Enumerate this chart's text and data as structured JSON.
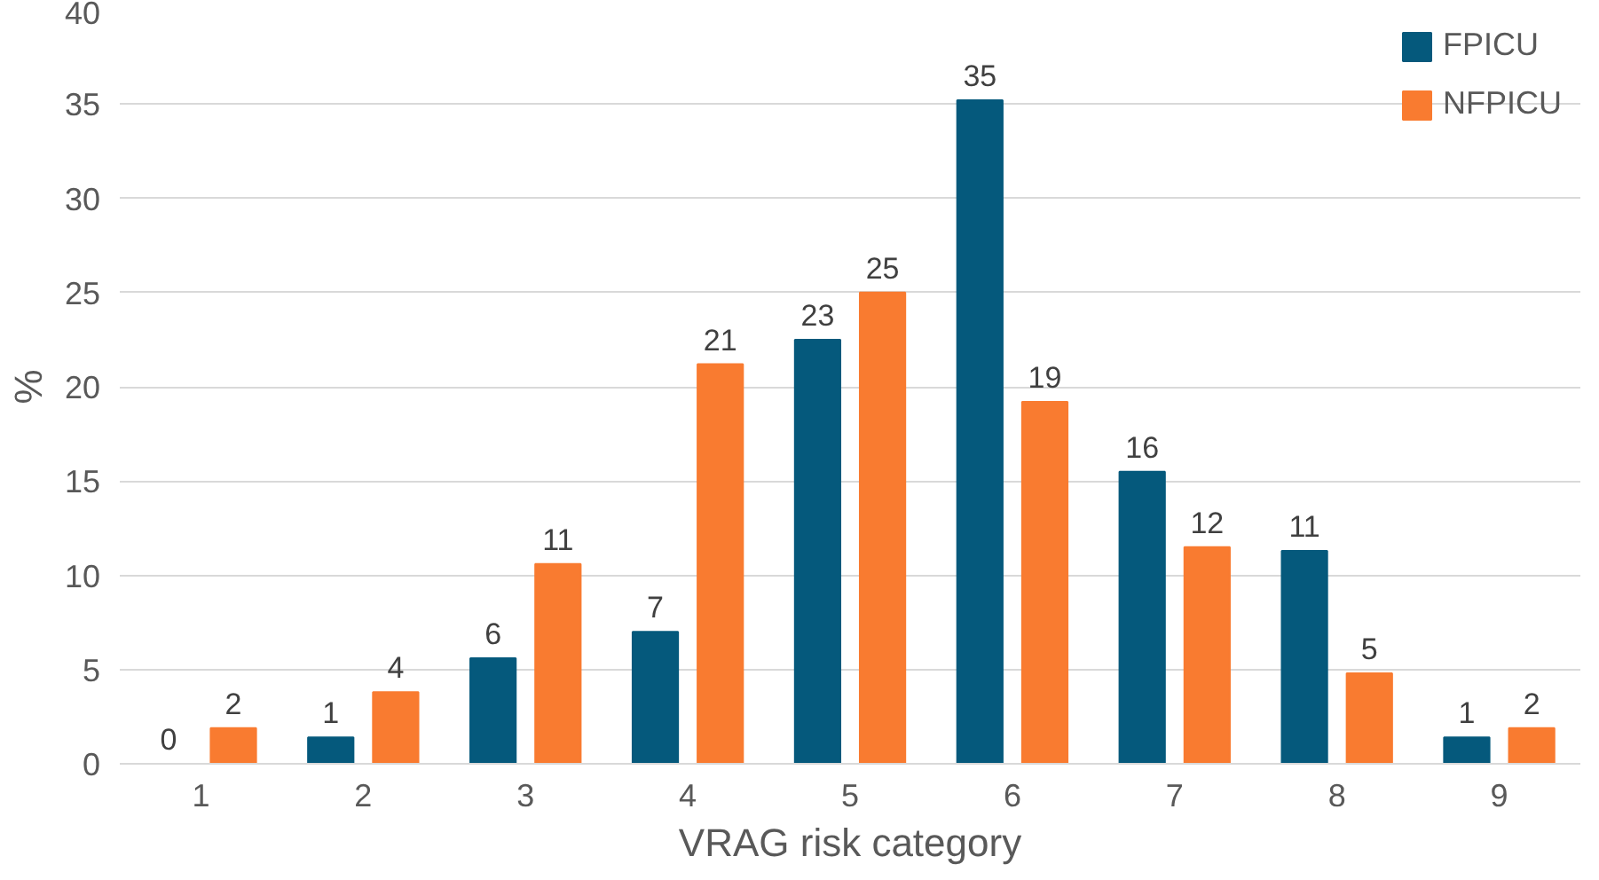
{
  "chart_data": {
    "type": "bar",
    "xlabel": "VRAG risk category",
    "ylabel": "%",
    "categories": [
      "1",
      "2",
      "3",
      "4",
      "5",
      "6",
      "7",
      "8",
      "9"
    ],
    "series": [
      {
        "name": "FPICU",
        "color": "#05597c",
        "values": [
          0,
          1.4,
          5.6,
          7.0,
          22.5,
          35.2,
          15.5,
          11.3,
          1.4
        ],
        "value_labels": [
          "0",
          "1",
          "6",
          "7",
          "23",
          "35",
          "16",
          "11",
          "1"
        ]
      },
      {
        "name": "NFPICU",
        "color": "#f97b30",
        "values": [
          1.9,
          3.8,
          10.6,
          21.2,
          25.0,
          19.2,
          11.5,
          4.8,
          1.9
        ],
        "value_labels": [
          "2",
          "4",
          "11",
          "21",
          "25",
          "19",
          "12",
          "5",
          "2"
        ]
      }
    ],
    "ylim": [
      0,
      40
    ],
    "yticks": [
      0,
      5,
      10,
      15,
      20,
      25,
      30,
      35,
      40
    ],
    "grid": "y",
    "legend": "top right"
  }
}
